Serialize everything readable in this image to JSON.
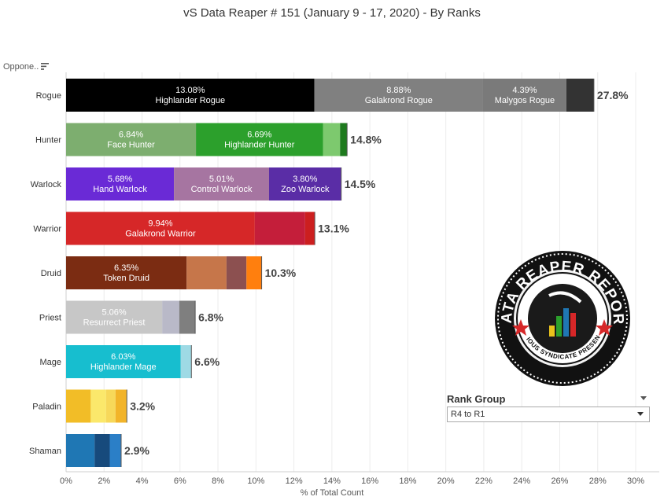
{
  "header": {
    "title": "vS Data Reaper #  151 (January 9 - 17, 2020) - By Ranks"
  },
  "sort": {
    "label": "Oppone..",
    "icon": "sort-icon"
  },
  "filter": {
    "title": "Rank Group",
    "selected": "R4 to R1",
    "icon": "chevron-down-icon"
  },
  "logo": {
    "text_top": "DATA REAPER REPORT",
    "text_bottom": "VICIOUS SYNDICATE PRESENTS"
  },
  "chart_data": {
    "type": "bar",
    "orientation": "horizontal",
    "stacked": true,
    "xlabel": "% of Total Count",
    "xlim": [
      0,
      30
    ],
    "xticks": [
      "0%",
      "2%",
      "4%",
      "6%",
      "8%",
      "10%",
      "12%",
      "14%",
      "16%",
      "18%",
      "20%",
      "22%",
      "24%",
      "26%",
      "28%",
      "30%"
    ],
    "grid": true,
    "categories": [
      {
        "label": "Rogue",
        "total": "27.8%",
        "segments": [
          {
            "value": 13.08,
            "name": "Highlander Rogue",
            "color": "#000000"
          },
          {
            "value": 8.88,
            "name": "Galakrond Rogue",
            "color": "#808080"
          },
          {
            "value": 4.39,
            "name": "Malygos Rogue",
            "color": "#7a7a7a"
          },
          {
            "value": 1.45,
            "color": "#333333"
          }
        ]
      },
      {
        "label": "Hunter",
        "total": "14.8%",
        "segments": [
          {
            "value": 6.84,
            "name": "Face Hunter",
            "color": "#7dae6f"
          },
          {
            "value": 6.69,
            "name": "Highlander Hunter",
            "color": "#2ca02c"
          },
          {
            "value": 0.9,
            "color": "#7dc96e"
          },
          {
            "value": 0.37,
            "color": "#1e7a1e"
          }
        ]
      },
      {
        "label": "Warlock",
        "total": "14.5%",
        "segments": [
          {
            "value": 5.68,
            "name": "Hand Warlock",
            "color": "#6a2ad6"
          },
          {
            "value": 5.01,
            "name": "Control Warlock",
            "color": "#a675a1"
          },
          {
            "value": 3.8,
            "name": "Zoo Warlock",
            "color": "#5a2da6"
          }
        ]
      },
      {
        "label": "Warrior",
        "total": "13.1%",
        "segments": [
          {
            "value": 9.94,
            "name": "Galakrond Warrior",
            "color": "#d62728"
          },
          {
            "value": 2.65,
            "color": "#c41e3a"
          },
          {
            "value": 0.51,
            "color": "#cc1f1f"
          }
        ]
      },
      {
        "label": "Druid",
        "total": "10.3%",
        "segments": [
          {
            "value": 6.35,
            "name": "Token Druid",
            "color": "#7b2c12"
          },
          {
            "value": 2.1,
            "color": "#c6764a"
          },
          {
            "value": 1.05,
            "color": "#8c5050"
          },
          {
            "value": 0.8,
            "color": "#ff7f0e"
          }
        ]
      },
      {
        "label": "Priest",
        "total": "6.8%",
        "segments": [
          {
            "value": 5.06,
            "name": "Resurrect Priest",
            "color": "#c7c7c7"
          },
          {
            "value": 0.9,
            "color": "#b9b9c8"
          },
          {
            "value": 0.84,
            "color": "#7f7f7f"
          }
        ]
      },
      {
        "label": "Mage",
        "total": "6.6%",
        "segments": [
          {
            "value": 6.03,
            "name": "Highlander Mage",
            "color": "#17becf"
          },
          {
            "value": 0.57,
            "color": "#9edae5"
          }
        ]
      },
      {
        "label": "Paladin",
        "total": "3.2%",
        "segments": [
          {
            "value": 1.3,
            "color": "#f2bd27"
          },
          {
            "value": 0.8,
            "color": "#fbe86b"
          },
          {
            "value": 0.5,
            "color": "#f7d85a"
          },
          {
            "value": 0.6,
            "color": "#f2b42a"
          }
        ]
      },
      {
        "label": "Shaman",
        "total": "2.9%",
        "segments": [
          {
            "value": 1.5,
            "color": "#1f77b4"
          },
          {
            "value": 0.8,
            "color": "#174a7c"
          },
          {
            "value": 0.6,
            "color": "#2b7fc7"
          }
        ]
      }
    ]
  }
}
